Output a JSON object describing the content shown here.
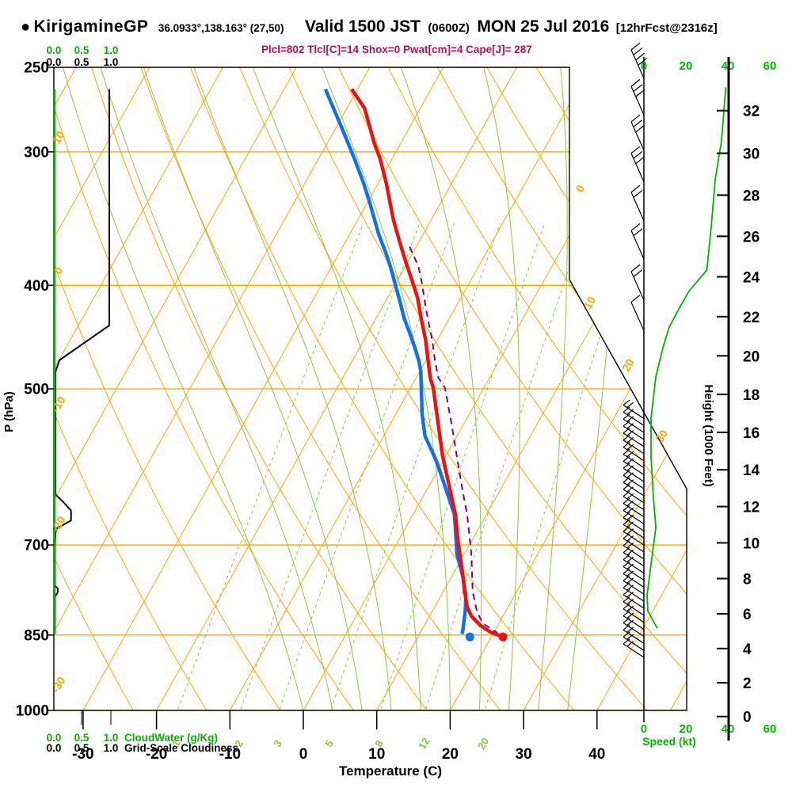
{
  "header": {
    "bullet": "●",
    "station": "KirigamineGP",
    "coords": "36.0933°,138.163° (27,50)",
    "valid": "Valid 1500 JST",
    "valid_z": "(0600Z)",
    "valid_date": "MON 25 Jul 2016",
    "fcst": "[12hrFcst@2316z]",
    "indices": "Plcl=802 Tlcl[C]=14 Shox=0 Pwat[cm]=4 Cape[J]= 287"
  },
  "colors": {
    "grid_orange": "#FFA500",
    "adiabat_green": "#8CC63F",
    "scale_green": "#00B400",
    "temp_red": "#EE1111",
    "dew_blue": "#1171E8",
    "parcel_purple": "#7B0082",
    "indices_magenta": "#B5125A",
    "ink": "#000000"
  },
  "axes_labels": {
    "pressure": "P (hPa)",
    "temperature": "Temperature (C)",
    "height": "Height (1000 Feet)",
    "speed": "Speed (kt)",
    "cloudwater": "CloudWater (g/Kg)",
    "cloudiness": "Grid-Scale Cloudiness"
  },
  "chart_data": {
    "type": "skewt_logp_sounding",
    "pressure_axis": {
      "ticks": [
        250,
        300,
        400,
        500,
        700,
        850,
        1000
      ],
      "range": [
        250,
        1000
      ]
    },
    "temperature_axis": {
      "ticks": [
        -30,
        -20,
        -10,
        0,
        10,
        20,
        30,
        40
      ],
      "units": "C"
    },
    "height_axis": {
      "ticks": [
        0,
        2,
        4,
        6,
        8,
        10,
        12,
        14,
        16,
        18,
        20,
        22,
        24,
        26,
        28,
        30,
        32
      ],
      "units": "1000 ft"
    },
    "speed_axis": {
      "ticks": [
        0,
        20,
        40,
        60
      ],
      "units": "kt"
    },
    "cloud_scales": {
      "ticks": [
        "0.0",
        "0.5",
        "1.0"
      ]
    },
    "isotherms_c": {
      "from": -120,
      "to": 50,
      "step": 10
    },
    "dry_adiabats_k": {
      "from": 250,
      "to": 440,
      "step": 10
    },
    "moist_adiabats_c": [
      0,
      4,
      8,
      12,
      16,
      20,
      24,
      28,
      32,
      36
    ],
    "mixing_ratio_lines_gkg": [
      1,
      2,
      3,
      5,
      8,
      12,
      20
    ],
    "isotherm_edge_labels": {
      "left": [
        {
          "t": 10,
          "p": 292
        },
        {
          "t": 0,
          "p": 389
        },
        {
          "t": -10,
          "p": 519
        },
        {
          "t": -20,
          "p": 672
        },
        {
          "t": -30,
          "p": 950
        }
      ],
      "right": [
        {
          "t": 0,
          "p": 326
        },
        {
          "t": 10,
          "p": 417
        },
        {
          "t": 20,
          "p": 477
        },
        {
          "t": 30,
          "p": 556
        }
      ]
    },
    "temperature_profile": [
      [
        262,
        -40.8
      ],
      [
        273,
        -37.6
      ],
      [
        295,
        -33.5
      ],
      [
        304,
        -31.7
      ],
      [
        321,
        -28.9
      ],
      [
        347,
        -25.2
      ],
      [
        365,
        -22.5
      ],
      [
        380,
        -20.3
      ],
      [
        395,
        -18.1
      ],
      [
        411,
        -15.9
      ],
      [
        430,
        -13.8
      ],
      [
        450,
        -11.6
      ],
      [
        488,
        -8.1
      ],
      [
        499,
        -6.9
      ],
      [
        577,
        -0.5
      ],
      [
        656,
        5.8
      ],
      [
        695,
        8.2
      ],
      [
        752,
        11.7
      ],
      [
        774,
        12.9
      ],
      [
        801,
        14.5
      ],
      [
        816,
        15.7
      ],
      [
        833,
        17.7
      ],
      [
        845,
        19.6
      ],
      [
        852,
        21.3
      ]
    ],
    "dewpoint_profile": [
      [
        262,
        -44.4
      ],
      [
        283,
        -39.6
      ],
      [
        304,
        -35.2
      ],
      [
        321,
        -32.0
      ],
      [
        334,
        -29.8
      ],
      [
        358,
        -26.1
      ],
      [
        374,
        -23.5
      ],
      [
        387,
        -21.6
      ],
      [
        399,
        -20.0
      ],
      [
        412,
        -18.3
      ],
      [
        430,
        -16.1
      ],
      [
        444,
        -14.2
      ],
      [
        459,
        -12.3
      ],
      [
        470,
        -11.0
      ],
      [
        481,
        -9.9
      ],
      [
        527,
        -6.5
      ],
      [
        553,
        -4.4
      ],
      [
        585,
        -0.8
      ],
      [
        655,
        5.6
      ],
      [
        675,
        6.8
      ],
      [
        714,
        9.0
      ],
      [
        752,
        11.7
      ],
      [
        781,
        13.4
      ],
      [
        805,
        14.4
      ],
      [
        838,
        15.5
      ],
      [
        848,
        15.8
      ]
    ],
    "parcel_profile": [
      [
        368,
        -20.9
      ],
      [
        384,
        -18.2
      ],
      [
        395,
        -16.8
      ],
      [
        411,
        -15.0
      ],
      [
        430,
        -12.9
      ],
      [
        450,
        -10.7
      ],
      [
        470,
        -8.8
      ],
      [
        488,
        -7.0
      ],
      [
        499,
        -5.3
      ],
      [
        540,
        -1.6
      ],
      [
        573,
        1.1
      ],
      [
        621,
        4.8
      ],
      [
        656,
        7.4
      ],
      [
        711,
        10.8
      ],
      [
        774,
        14.0
      ],
      [
        808,
        16.1
      ],
      [
        829,
        17.8
      ],
      [
        840,
        19.6
      ],
      [
        846,
        20.5
      ]
    ],
    "surface_points": {
      "pressure": 852,
      "temperature": 21.3,
      "dewpoint": 16.8
    },
    "cloudiness_profile": [
      [
        262,
        1.0
      ],
      [
        436,
        1.0
      ],
      [
        470,
        0.1
      ],
      [
        482,
        0.03
      ],
      [
        628,
        0.03
      ],
      [
        638,
        0.17
      ],
      [
        650,
        0.31
      ],
      [
        664,
        0.31
      ],
      [
        675,
        0.06
      ],
      [
        681,
        0.03
      ],
      [
        702,
        0.02
      ],
      [
        764,
        0.02
      ],
      [
        769,
        0.07
      ],
      [
        775,
        0.07
      ],
      [
        783,
        0.02
      ],
      [
        848,
        0.02
      ]
    ],
    "cloudwater_profile": [
      [
        262,
        0.015
      ],
      [
        848,
        0.015
      ]
    ],
    "wind_speed_profile_kt": [
      [
        261,
        39
      ],
      [
        293,
        37
      ],
      [
        318,
        34
      ],
      [
        354,
        32
      ],
      [
        387,
        30
      ],
      [
        405,
        21.5
      ],
      [
        421,
        16.6
      ],
      [
        438,
        12
      ],
      [
        458,
        9
      ],
      [
        487,
        5.7
      ],
      [
        533,
        3.4
      ],
      [
        579,
        3.4
      ],
      [
        630,
        4.5
      ],
      [
        674,
        5.7
      ],
      [
        730,
        3.4
      ],
      [
        780,
        1.5
      ],
      [
        807,
        1.9
      ],
      [
        838,
        6.4
      ]
    ],
    "wind_barbs": {
      "upper": [
        {
          "p": 256,
          "feathers": 4
        },
        {
          "p": 277,
          "feathers": 3
        },
        {
          "p": 299,
          "feathers": 3
        },
        {
          "p": 320,
          "feathers": 3
        },
        {
          "p": 348,
          "feathers": 2
        },
        {
          "p": 378,
          "feathers": 2
        },
        {
          "p": 413,
          "feathers": 2
        },
        {
          "p": 441,
          "feathers": 1
        }
      ],
      "dense": {
        "p_from": 533,
        "p_to": 892,
        "count": 35,
        "feathers": 2
      }
    }
  }
}
